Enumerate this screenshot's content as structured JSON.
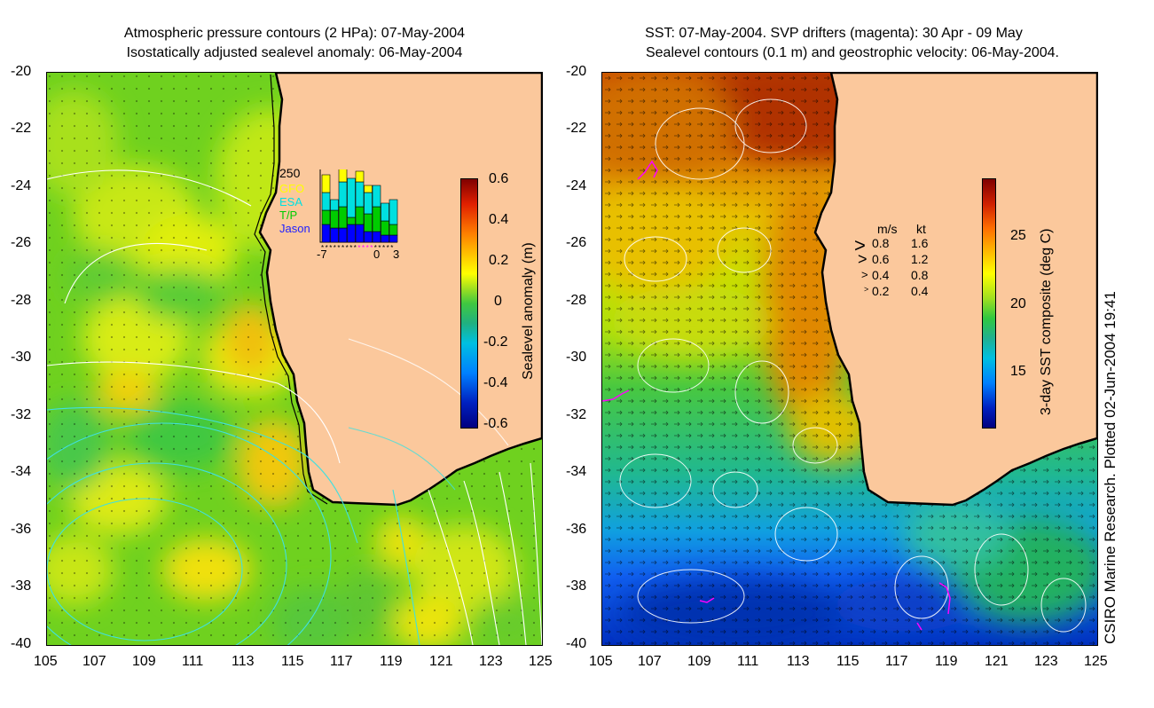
{
  "left_panel": {
    "title_line1": "Atmospheric pressure contours (2 HPa): 07-May-2004",
    "title_line2": "Isostatically adjusted sealevel anomaly: 06-May-2004",
    "lat_ticks": [
      "-20",
      "-22",
      "-24",
      "-26",
      "-28",
      "-30",
      "-32",
      "-34",
      "-36",
      "-38",
      "-40"
    ],
    "lon_ticks": [
      "105",
      "107",
      "109",
      "111",
      "113",
      "115",
      "117",
      "119",
      "121",
      "123",
      "125"
    ],
    "colorbar": {
      "label": "Sealevel anomaly (m)",
      "ticks": [
        "0.6",
        "0.4",
        "0.2",
        "0",
        "-0.2",
        "-0.4",
        "-0.6"
      ],
      "range": [
        -0.6,
        0.6
      ]
    },
    "inset": {
      "ymax_label": "250",
      "legend": [
        {
          "label": "GFO",
          "color": "#ffff00"
        },
        {
          "label": "ESA",
          "color": "#00e0e0"
        },
        {
          "label": "T/P",
          "color": "#00cc00"
        },
        {
          "label": "Jason",
          "color": "#0000ff"
        }
      ],
      "x_labels": [
        "-7",
        "0",
        "3"
      ],
      "bars": [
        {
          "jason": 0.25,
          "tp": 0.2,
          "esa": 0.25,
          "gfo": 0.25
        },
        {
          "jason": 0.2,
          "tp": 0.25,
          "esa": 0.15,
          "gfo": 0.0
        },
        {
          "jason": 0.2,
          "tp": 0.3,
          "esa": 0.35,
          "gfo": 0.2
        },
        {
          "jason": 0.25,
          "tp": 0.1,
          "esa": 0.55,
          "gfo": 0.0
        },
        {
          "jason": 0.25,
          "tp": 0.25,
          "esa": 0.35,
          "gfo": 0.15
        },
        {
          "jason": 0.15,
          "tp": 0.25,
          "esa": 0.3,
          "gfo": 0.1
        },
        {
          "jason": 0.15,
          "tp": 0.35,
          "esa": 0.3,
          "gfo": 0.0
        },
        {
          "jason": 0.1,
          "tp": 0.2,
          "esa": 0.25,
          "gfo": 0.0
        },
        {
          "jason": 0.1,
          "tp": 0.15,
          "esa": 0.35,
          "gfo": 0.0
        }
      ]
    }
  },
  "right_panel": {
    "title_line1": "SST: 07-May-2004. SVP drifters (magenta): 30 Apr - 09 May",
    "title_line2": "Sealevel contours (0.1 m) and geostrophic velocity: 06-May-2004.",
    "lat_ticks": [
      "-20",
      "-22",
      "-24",
      "-26",
      "-28",
      "-30",
      "-32",
      "-34",
      "-36",
      "-38",
      "-40"
    ],
    "lon_ticks": [
      "105",
      "107",
      "109",
      "111",
      "113",
      "115",
      "117",
      "119",
      "121",
      "123",
      "125"
    ],
    "colorbar": {
      "label": "3-day SST composite (deg C)",
      "ticks": [
        "25",
        "20",
        "15"
      ],
      "range": [
        11,
        29
      ]
    },
    "velocity_legend": {
      "header_ms": "m/s",
      "header_kt": "kt",
      "rows": [
        {
          "ms": "0.8",
          "kt": "1.6"
        },
        {
          "ms": "0.6",
          "kt": "1.2"
        },
        {
          "ms": "0.4",
          "kt": "0.8"
        },
        {
          "ms": "0.2",
          "kt": "0.4"
        }
      ]
    }
  },
  "credit": "CSIRO Marine Research. Plotted 02-Jun-2004 19:41",
  "colors": {
    "land": "#fbc89c",
    "coast": "#000000",
    "drifter": "#ff00ff",
    "contour_white": "#ffffff",
    "contour_cyan": "#40e0e0"
  }
}
